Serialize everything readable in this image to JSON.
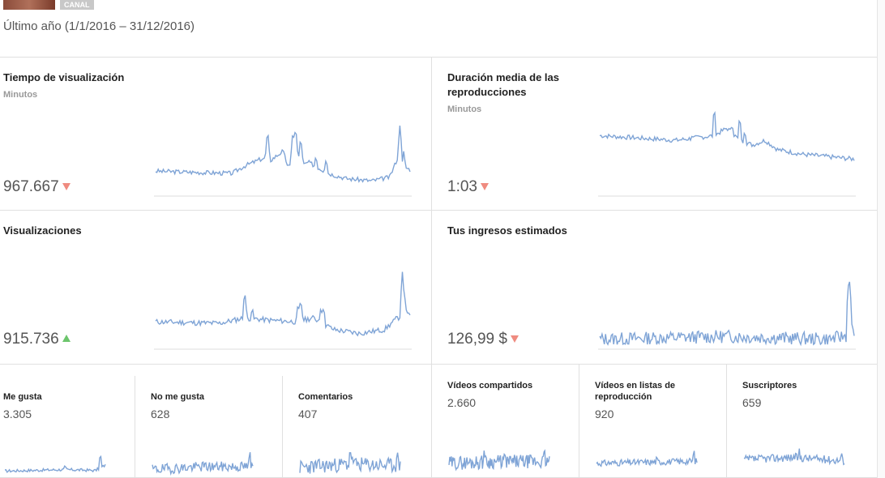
{
  "header": {
    "badge": "CANAL",
    "date_range": "Último año (1/1/2016 – 31/12/2016)"
  },
  "cards": {
    "watch_time": {
      "title": "Tiempo de visualización",
      "subtitle": "Minutos",
      "value": "967.667",
      "trend": "down"
    },
    "avg_duration": {
      "title": "Duración media de las reproducciones",
      "subtitle": "Minutos",
      "value": "1:03",
      "trend": "down"
    },
    "views": {
      "title": "Visualizaciones",
      "value": "915.736",
      "trend": "up"
    },
    "revenue": {
      "title": "Tus ingresos estimados",
      "value": "126,99 $",
      "trend": "down"
    }
  },
  "small": {
    "likes": {
      "title": "Me gusta",
      "value": "3.305"
    },
    "dislikes": {
      "title": "No me gusta",
      "value": "628"
    },
    "comments": {
      "title": "Comentarios",
      "value": "407"
    },
    "shares": {
      "title": "Vídeos compartidos",
      "value": "2.660"
    },
    "playlists": {
      "title": "Vídeos en listas de reproducción",
      "value": "920"
    },
    "subscribers": {
      "title": "Suscriptores",
      "value": "659"
    }
  },
  "colors": {
    "line": "#7fa4d6",
    "down": "#ef8b80",
    "up": "#6cc56c"
  }
}
